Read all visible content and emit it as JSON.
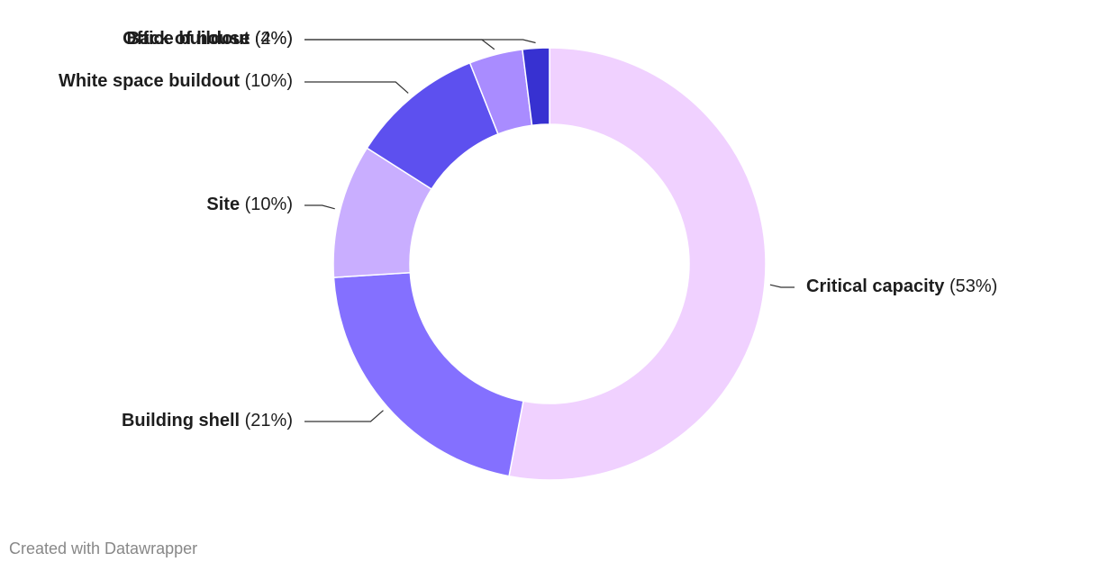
{
  "chart_data": {
    "type": "donut",
    "categories": [
      "Critical capacity",
      "Building shell",
      "Site",
      "White space buildout",
      "Back of house",
      "Office buildout"
    ],
    "values": [
      53,
      21,
      10,
      10,
      4,
      2
    ],
    "value_labels": [
      "(53%)",
      "(21%)",
      "(10%)",
      "(10%)",
      "(4%)",
      "(2%)"
    ],
    "colors": [
      "#f0d1ff",
      "#8470ff",
      "#c9aeff",
      "#5d50ef",
      "#a98cff",
      "#3731d1"
    ],
    "credit": "Created with Datawrapper"
  }
}
